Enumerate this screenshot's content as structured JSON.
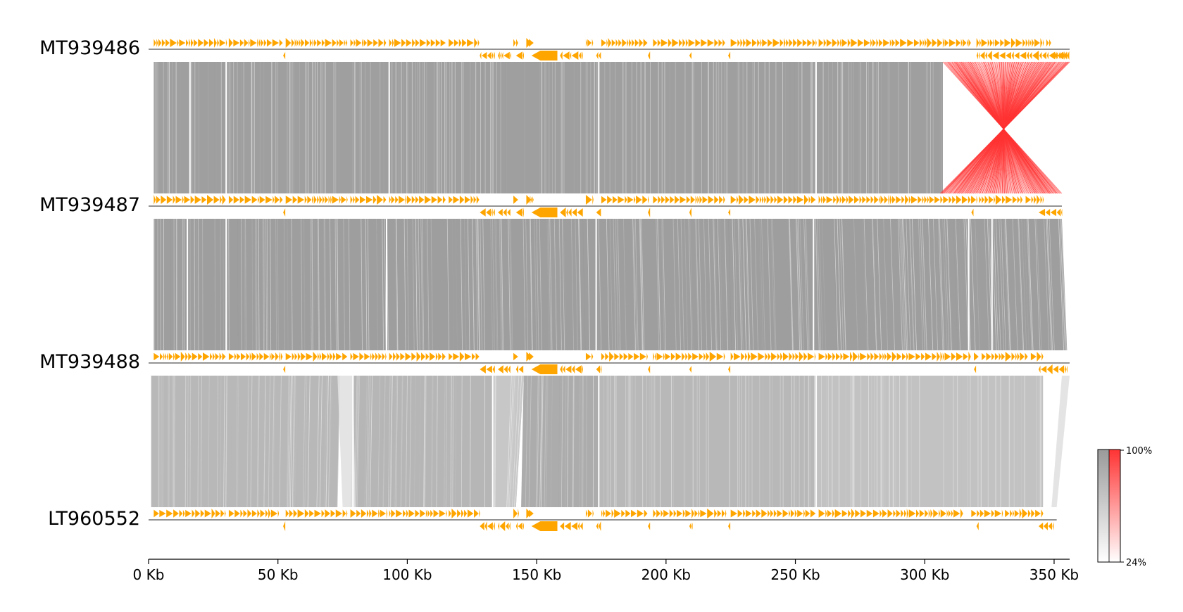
{
  "chart_data": {
    "type": "synteny",
    "genomes": [
      {
        "name": "MT939486",
        "length_kb": 356
      },
      {
        "name": "MT939487",
        "length_kb": 353
      },
      {
        "name": "MT939488",
        "length_kb": 356
      },
      {
        "name": "LT960552",
        "length_kb": 351
      }
    ],
    "x_axis": {
      "min_kb": 0,
      "max_kb": 356,
      "ticks": [
        0,
        50,
        100,
        150,
        200,
        250,
        300,
        350
      ],
      "tick_labels": [
        "0 Kb",
        "50 Kb",
        "100 Kb",
        "150 Kb",
        "200 Kb",
        "250 Kb",
        "300 Kb",
        "350 Kb"
      ]
    },
    "colorbar": {
      "max_label": "100%",
      "min_label": "24%",
      "forward_color": "#9a9a9a",
      "inverted_color": "#ff3333"
    },
    "gene_color": "#ffa500",
    "comparisons": [
      {
        "pair": [
          "MT939486",
          "MT939487"
        ],
        "collinear_blocks_kb": [
          {
            "top": [
              2,
              307
            ],
            "bottom": [
              2,
              307
            ],
            "identity": 0.95
          }
        ],
        "inversion_kb": {
          "top": [
            307,
            356
          ],
          "bottom": [
            306,
            353
          ],
          "identity": 0.98
        },
        "gaps_kb": [
          16,
          30,
          93,
          174,
          258
        ]
      },
      {
        "pair": [
          "MT939487",
          "MT939488"
        ],
        "collinear_blocks_kb": [
          {
            "top": [
              2,
              353
            ],
            "bottom": [
              2,
              355
            ],
            "identity": 0.96
          }
        ],
        "gaps_kb": [
          15,
          30,
          92,
          173,
          257,
          317,
          326
        ]
      },
      {
        "pair": [
          "MT939488",
          "LT960552"
        ],
        "collinear_blocks_kb": [
          {
            "top": [
              1,
              74
            ],
            "bottom": [
              1,
              73
            ],
            "identity": 0.7
          },
          {
            "top": [
              79,
              133
            ],
            "bottom": [
              78,
              133
            ],
            "identity": 0.72
          },
          {
            "top": [
              133,
              145
            ],
            "bottom": [
              133,
              142
            ],
            "identity": 0.55
          },
          {
            "top": [
              145,
              174
            ],
            "bottom": [
              144,
              174
            ],
            "identity": 0.82
          },
          {
            "top": [
              174,
              258
            ],
            "bottom": [
              174,
              258
            ],
            "identity": 0.7
          },
          {
            "top": [
              258,
              346
            ],
            "bottom": [
              258,
              346
            ],
            "identity": 0.6
          }
        ],
        "weak_blocks_kb": [
          {
            "top": [
              73,
              79
            ],
            "bottom": [
              75,
              80
            ],
            "identity": 0.3
          },
          {
            "top": [
              353,
              356
            ],
            "bottom": [
              349,
              351
            ],
            "identity": 0.3
          }
        ],
        "gaps_kb": [
          79,
          133,
          174,
          258,
          346
        ]
      }
    ]
  }
}
